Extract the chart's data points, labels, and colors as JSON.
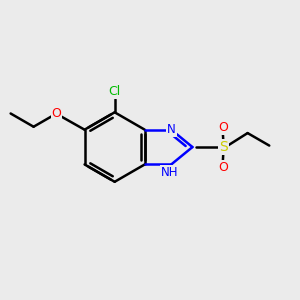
{
  "bg_color": "#ebebeb",
  "bond_color": "#000000",
  "bond_width": 1.8,
  "atom_colors": {
    "N": "#0000ff",
    "O": "#ff0000",
    "S": "#cccc00",
    "Cl": "#00bb00",
    "C": "#000000",
    "H": "#000000"
  },
  "figsize": [
    3.0,
    3.0
  ],
  "dpi": 100,
  "xlim": [
    0,
    10
  ],
  "ylim": [
    0,
    10
  ]
}
